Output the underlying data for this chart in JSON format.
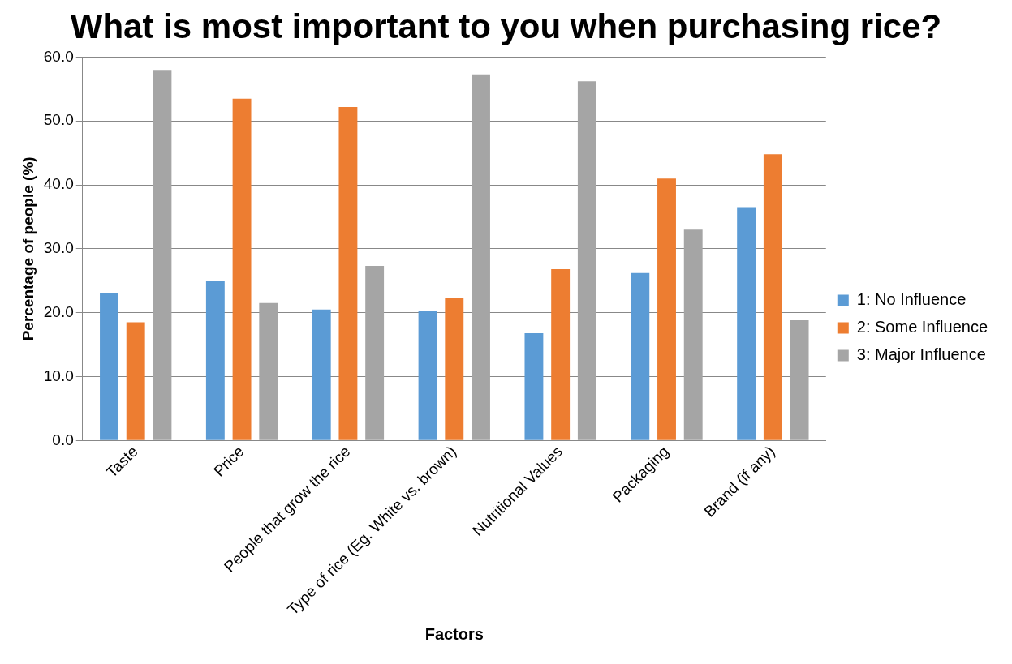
{
  "chart_data": {
    "type": "bar",
    "title": "What is most important to you when purchasing rice?",
    "xlabel": "Factors",
    "ylabel": "Percentage of people (%)",
    "categories": [
      "Taste",
      "Price",
      "People that grow the rice",
      "Type of rice (Eg. White vs. brown)",
      "Nutritional Values",
      "Packaging",
      "Brand (if any)"
    ],
    "series": [
      {
        "name": "1: No Influence",
        "color": "#5b9bd5",
        "values": [
          23.0,
          25.0,
          20.5,
          20.2,
          16.8,
          26.2,
          36.5
        ]
      },
      {
        "name": "2: Some Influence",
        "color": "#ed7d31",
        "values": [
          18.5,
          53.5,
          52.2,
          22.3,
          26.8,
          41.0,
          44.8
        ]
      },
      {
        "name": "3: Major Influence",
        "color": "#a5a5a5",
        "values": [
          58.0,
          21.5,
          27.3,
          57.3,
          56.2,
          33.0,
          18.8
        ]
      }
    ],
    "ylim": [
      0,
      60
    ],
    "yticks": [
      {
        "value": 0,
        "label": "0.0"
      },
      {
        "value": 10,
        "label": "10.0"
      },
      {
        "value": 20,
        "label": "20.0"
      },
      {
        "value": 30,
        "label": "30.0"
      },
      {
        "value": 40,
        "label": "40.0"
      },
      {
        "value": 50,
        "label": "50.0"
      },
      {
        "value": 60,
        "label": "60.0"
      }
    ],
    "grid": "y",
    "legend": "right"
  }
}
